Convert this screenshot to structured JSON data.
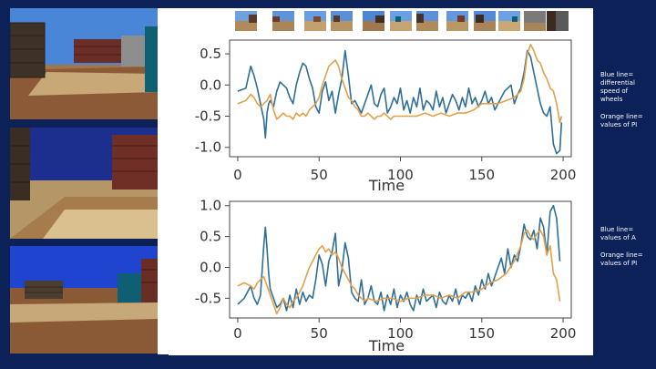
{
  "colors": {
    "background": "#0b2157",
    "series_blue": "#2f6f97",
    "series_orange": "#e3a04a",
    "panel": "#ffffff"
  },
  "side_notes": {
    "top": [
      "Blue line=",
      "differential",
      "speed of",
      "wheels",
      "Orange line=",
      "values of PI"
    ],
    "bottom": [
      "Blue line=",
      "values of A",
      "Orange line=",
      "values of PI"
    ]
  },
  "chart_data": [
    {
      "type": "line",
      "xlabel": "Time",
      "ylabel": "",
      "xlim": [
        -5,
        205
      ],
      "ylim": [
        -1.15,
        0.72
      ],
      "xticks": [
        0,
        50,
        100,
        150,
        200
      ],
      "yticks": [
        0.5,
        0.0,
        -0.5,
        -1.0
      ],
      "ytick_labels": [
        "0.5",
        "0.0",
        "-0.5",
        "-1.0"
      ],
      "grid": false,
      "series": [
        {
          "color": "#2f6f97",
          "x": [
            0,
            5,
            8,
            10,
            12,
            14,
            16,
            17,
            18,
            19,
            20,
            22,
            24,
            26,
            28,
            30,
            32,
            34,
            36,
            38,
            40,
            42,
            44,
            46,
            48,
            50,
            52,
            54,
            56,
            58,
            60,
            62,
            64,
            66,
            68,
            70,
            72,
            74,
            76,
            78,
            80,
            82,
            84,
            86,
            88,
            90,
            92,
            94,
            96,
            98,
            100,
            102,
            104,
            106,
            108,
            110,
            112,
            114,
            116,
            118,
            120,
            122,
            124,
            126,
            128,
            130,
            132,
            134,
            136,
            138,
            140,
            142,
            144,
            146,
            148,
            150,
            152,
            154,
            156,
            158,
            160,
            162,
            164,
            166,
            168,
            170,
            172,
            174,
            176,
            178,
            180,
            182,
            184,
            186,
            188,
            190,
            192,
            194,
            196,
            198,
            199
          ],
          "y": [
            -0.1,
            -0.05,
            0.3,
            0.15,
            -0.05,
            -0.3,
            -0.55,
            -0.85,
            -0.45,
            -0.3,
            -0.25,
            -0.35,
            -0.1,
            0.05,
            0.0,
            -0.05,
            -0.2,
            -0.3,
            0.0,
            0.2,
            0.35,
            0.3,
            0.1,
            -0.05,
            -0.35,
            -0.45,
            -0.1,
            0.05,
            -0.25,
            -0.1,
            -0.45,
            -0.15,
            0.1,
            0.55,
            0.15,
            -0.3,
            -0.25,
            -0.35,
            -0.45,
            -0.3,
            -0.15,
            0.0,
            -0.3,
            -0.35,
            -0.15,
            -0.05,
            -0.45,
            -0.35,
            -0.2,
            -0.3,
            -0.05,
            -0.4,
            -0.25,
            -0.45,
            -0.2,
            -0.35,
            -0.05,
            -0.4,
            -0.25,
            -0.3,
            -0.4,
            -0.1,
            -0.35,
            -0.2,
            -0.45,
            -0.3,
            -0.15,
            -0.25,
            -0.4,
            -0.2,
            -0.35,
            -0.05,
            -0.3,
            -0.2,
            -0.35,
            -0.25,
            -0.1,
            -0.3,
            -0.2,
            -0.4,
            -0.3,
            -0.2,
            -0.1,
            -0.05,
            0.0,
            -0.3,
            -0.15,
            -0.05,
            0.2,
            0.55,
            0.45,
            0.2,
            -0.05,
            -0.3,
            -0.45,
            -0.5,
            -0.35,
            -0.95,
            -1.1,
            -1.05,
            -0.6
          ]
        },
        {
          "color": "#e3a04a",
          "x": [
            0,
            5,
            8,
            10,
            12,
            14,
            16,
            18,
            20,
            22,
            24,
            26,
            28,
            30,
            32,
            34,
            36,
            38,
            40,
            42,
            44,
            46,
            48,
            50,
            52,
            54,
            56,
            58,
            60,
            62,
            64,
            66,
            68,
            70,
            72,
            74,
            76,
            78,
            80,
            82,
            84,
            86,
            88,
            90,
            92,
            94,
            96,
            98,
            100,
            105,
            110,
            115,
            120,
            125,
            130,
            135,
            140,
            145,
            150,
            155,
            160,
            165,
            170,
            174,
            176,
            178,
            180,
            182,
            184,
            186,
            188,
            190,
            192,
            194,
            196,
            198,
            199
          ],
          "y": [
            -0.3,
            -0.25,
            -0.15,
            -0.2,
            -0.3,
            -0.35,
            -0.3,
            -0.25,
            -0.15,
            -0.4,
            -0.55,
            -0.5,
            -0.45,
            -0.5,
            -0.5,
            -0.55,
            -0.45,
            -0.5,
            -0.45,
            -0.5,
            -0.4,
            -0.35,
            -0.3,
            -0.2,
            0.0,
            0.15,
            0.3,
            0.35,
            0.4,
            0.3,
            0.1,
            -0.05,
            -0.2,
            -0.25,
            -0.35,
            -0.4,
            -0.5,
            -0.5,
            -0.45,
            -0.5,
            -0.55,
            -0.5,
            -0.5,
            -0.45,
            -0.5,
            -0.55,
            -0.5,
            -0.5,
            -0.5,
            -0.5,
            -0.5,
            -0.45,
            -0.5,
            -0.45,
            -0.5,
            -0.45,
            -0.45,
            -0.4,
            -0.3,
            -0.3,
            -0.3,
            -0.25,
            -0.2,
            -0.1,
            0.1,
            0.5,
            0.65,
            0.55,
            0.4,
            0.35,
            0.2,
            0.1,
            -0.05,
            -0.1,
            -0.3,
            -0.6,
            -0.5
          ]
        }
      ]
    },
    {
      "type": "line",
      "xlabel": "Time",
      "ylabel": "",
      "xlim": [
        -5,
        205
      ],
      "ylim": [
        -0.82,
        1.07
      ],
      "xticks": [
        0,
        50,
        100,
        150,
        200
      ],
      "yticks": [
        1.0,
        0.5,
        0.0,
        -0.5
      ],
      "ytick_labels": [
        "1.0",
        "0.5",
        "0.0",
        "-0.5"
      ],
      "grid": false,
      "series": [
        {
          "color": "#2f6f97",
          "x": [
            0,
            4,
            8,
            10,
            12,
            14,
            16,
            17,
            18,
            19,
            20,
            22,
            24,
            26,
            28,
            30,
            32,
            34,
            36,
            38,
            40,
            42,
            44,
            46,
            48,
            50,
            52,
            54,
            56,
            58,
            60,
            62,
            64,
            66,
            68,
            70,
            72,
            74,
            76,
            78,
            80,
            82,
            84,
            86,
            88,
            90,
            92,
            94,
            96,
            98,
            100,
            102,
            104,
            106,
            108,
            110,
            112,
            114,
            116,
            118,
            120,
            122,
            124,
            126,
            128,
            130,
            132,
            134,
            136,
            138,
            140,
            142,
            144,
            146,
            148,
            150,
            152,
            154,
            156,
            158,
            160,
            162,
            164,
            166,
            168,
            170,
            172,
            174,
            176,
            178,
            180,
            182,
            184,
            186,
            188,
            190,
            192,
            194,
            196,
            198
          ],
          "y": [
            -0.6,
            -0.5,
            -0.3,
            -0.5,
            -0.6,
            -0.45,
            0.35,
            0.65,
            0.3,
            -0.1,
            -0.35,
            -0.5,
            -0.65,
            -0.6,
            -0.5,
            -0.7,
            -0.45,
            -0.65,
            -0.35,
            -0.6,
            -0.4,
            -0.55,
            -0.45,
            -0.5,
            -0.2,
            0.2,
            0.05,
            -0.3,
            0.1,
            0.25,
            0.55,
            -0.3,
            -0.05,
            0.4,
            0.15,
            -0.4,
            -0.5,
            -0.55,
            -0.2,
            -0.6,
            -0.5,
            -0.3,
            -0.55,
            -0.6,
            -0.4,
            -0.7,
            -0.45,
            -0.6,
            -0.35,
            -0.65,
            -0.45,
            -0.55,
            -0.4,
            -0.6,
            -0.7,
            -0.45,
            -0.6,
            -0.35,
            -0.55,
            -0.5,
            -0.45,
            -0.65,
            -0.4,
            -0.55,
            -0.6,
            -0.45,
            -0.55,
            -0.35,
            -0.6,
            -0.45,
            -0.5,
            -0.4,
            -0.55,
            -0.3,
            -0.45,
            -0.2,
            -0.35,
            -0.1,
            -0.3,
            -0.15,
            0.0,
            0.15,
            -0.1,
            0.3,
            0.0,
            0.2,
            0.1,
            0.35,
            0.7,
            0.5,
            0.45,
            0.6,
            0.3,
            0.8,
            0.65,
            0.2,
            0.9,
            1.0,
            0.8,
            0.1
          ]
        },
        {
          "color": "#e3a04a",
          "x": [
            0,
            4,
            8,
            10,
            12,
            14,
            16,
            18,
            20,
            22,
            24,
            26,
            28,
            30,
            32,
            34,
            36,
            38,
            40,
            42,
            44,
            46,
            48,
            50,
            52,
            54,
            56,
            58,
            60,
            62,
            64,
            66,
            68,
            70,
            72,
            74,
            76,
            78,
            80,
            85,
            90,
            95,
            100,
            105,
            110,
            115,
            120,
            125,
            130,
            135,
            140,
            145,
            150,
            155,
            160,
            165,
            170,
            174,
            176,
            178,
            180,
            182,
            184,
            186,
            188,
            190,
            192,
            194,
            196,
            198
          ],
          "y": [
            -0.3,
            -0.25,
            -0.3,
            -0.35,
            -0.25,
            -0.2,
            -0.15,
            -0.3,
            -0.45,
            -0.6,
            -0.75,
            -0.65,
            -0.5,
            -0.6,
            -0.65,
            -0.55,
            -0.5,
            -0.4,
            -0.3,
            -0.15,
            0.0,
            0.1,
            0.2,
            0.3,
            0.35,
            0.25,
            0.3,
            0.2,
            0.25,
            0.15,
            0.0,
            -0.1,
            -0.2,
            -0.3,
            -0.35,
            -0.45,
            -0.5,
            -0.55,
            -0.5,
            -0.55,
            -0.5,
            -0.5,
            -0.55,
            -0.5,
            -0.5,
            -0.45,
            -0.45,
            -0.5,
            -0.45,
            -0.5,
            -0.4,
            -0.4,
            -0.35,
            -0.25,
            -0.2,
            -0.1,
            0.1,
            0.35,
            0.55,
            0.6,
            0.5,
            0.45,
            0.55,
            0.6,
            0.5,
            0.2,
            0.35,
            -0.1,
            -0.2,
            -0.55
          ]
        }
      ]
    }
  ]
}
